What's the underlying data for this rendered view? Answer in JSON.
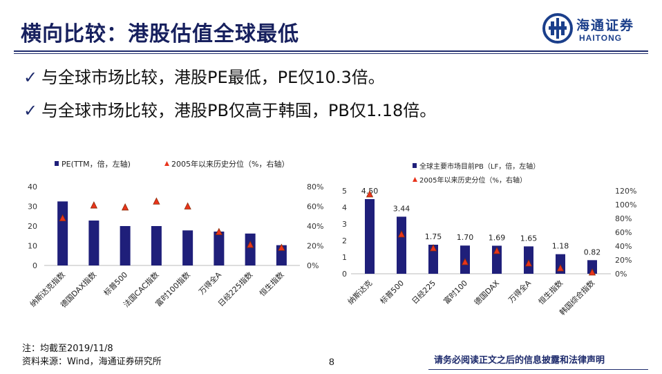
{
  "slide": {
    "title": "横向比较：港股估值全球最低",
    "bullets": [
      "与全球市场比较，港股PE最低，PE仅10.3倍。",
      "与全球市场比较，港股PB仅高于韩国，PB仅1.18倍。"
    ],
    "check_icon": "check-icon",
    "footnote_1": "注：均截至2019/11/8",
    "footnote_2": "资料来源：Wind，海通证券研究所",
    "page_number": "8",
    "disclaimer": "请务必阅读正文之后的信息披露和法律声明"
  },
  "logo": {
    "name_cn": "海通证券",
    "name_en": "HAITONG",
    "icon": "haitong-logo-icon"
  },
  "colors": {
    "title": "#17205e",
    "bar": "#1f1f7a",
    "marker": "#e8341c",
    "marker_edge": "#8a2b06",
    "axis_text": "#333333"
  },
  "chart_data": [
    {
      "type": "bar",
      "categories": [
        "纳斯达克指数",
        "德国DAX指数",
        "标普500",
        "法国CAC指数",
        "富时100指数",
        "万得全A",
        "日经225指数",
        "恒生指数"
      ],
      "series": [
        {
          "name": "PE(TTM，倍，左轴)",
          "type": "bar",
          "axis": "left",
          "values": [
            32.5,
            22.8,
            20.0,
            20.0,
            17.8,
            17.2,
            16.2,
            10.3
          ]
        },
        {
          "name": "2005年以来历史分位（%，右轴）",
          "type": "marker",
          "axis": "right",
          "values": [
            48,
            61,
            59,
            65,
            60,
            34,
            21,
            18
          ]
        }
      ],
      "legend": [
        "PE(TTM，倍，左轴)",
        "2005年以来历史分位（%，右轴）"
      ],
      "ylim_left": [
        0,
        40
      ],
      "yticks_left": [
        "0",
        "10",
        "20",
        "30",
        "40"
      ],
      "ylim_right": [
        0,
        80
      ],
      "yticks_right": [
        "0%",
        "20%",
        "40%",
        "60%",
        "80%"
      ],
      "grid": false,
      "legend_position": "top"
    },
    {
      "type": "bar",
      "categories": [
        "纳斯达克",
        "标普500",
        "日经225",
        "富时100",
        "德国DAX",
        "万得全A",
        "恒生指数",
        "韩国综合指数"
      ],
      "series": [
        {
          "name": "全球主要市场目前PB（LF，倍，左轴）",
          "type": "bar",
          "axis": "left",
          "values": [
            4.5,
            3.44,
            1.75,
            1.7,
            1.69,
            1.65,
            1.18,
            0.82
          ],
          "labels": [
            "4.50",
            "3.44",
            "1.75",
            "1.70",
            "1.69",
            "1.65",
            "1.18",
            "0.82"
          ]
        },
        {
          "name": "2005年以来历史分位（%，右轴）",
          "type": "marker",
          "axis": "right",
          "values": [
            115,
            57,
            37,
            17,
            33,
            15,
            8,
            2
          ]
        }
      ],
      "legend": [
        "全球主要市场目前PB（LF，倍，左轴）",
        "2005年以来历史分位（%，右轴）"
      ],
      "ylim_left": [
        0,
        5
      ],
      "yticks_left": [
        "0",
        "1",
        "2",
        "3",
        "4",
        "5"
      ],
      "ylim_right": [
        0,
        120
      ],
      "yticks_right": [
        "0%",
        "20%",
        "40%",
        "60%",
        "80%",
        "100%",
        "120%"
      ],
      "grid": false,
      "legend_position": "top-left"
    }
  ]
}
